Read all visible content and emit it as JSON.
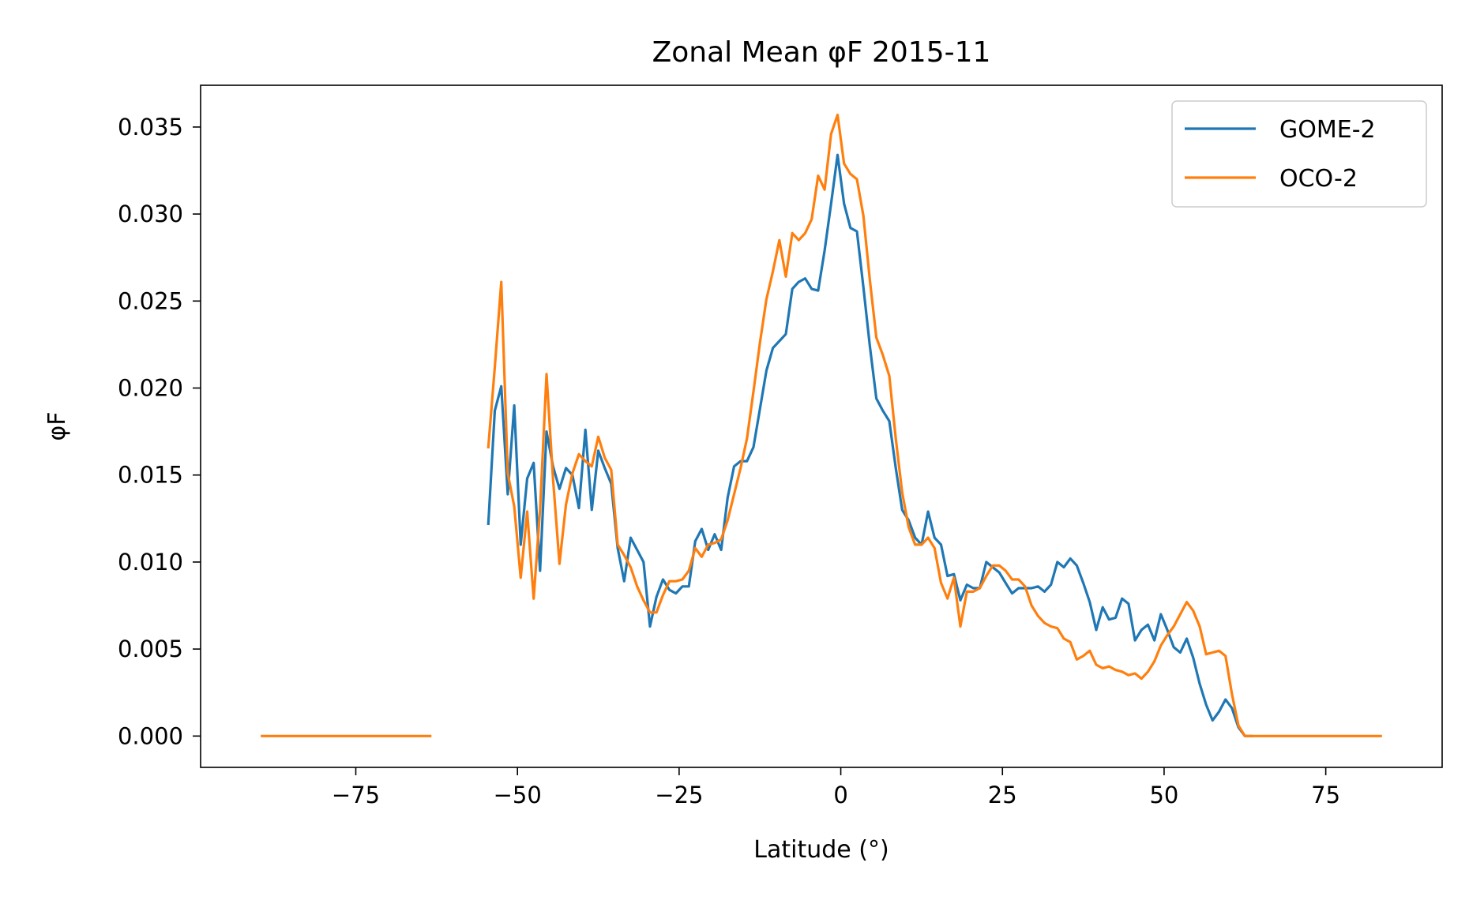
{
  "chart_data": {
    "type": "line",
    "title": "Zonal Mean φF  2015-11",
    "xlabel": "Latitude (°)",
    "ylabel": "φF",
    "xlim": [
      -99,
      93
    ],
    "ylim": [
      -0.0018,
      0.0374
    ],
    "xticks": [
      -75,
      -50,
      -25,
      0,
      25,
      50,
      75
    ],
    "xtick_labels": [
      "−75",
      "−50",
      "−25",
      "0",
      "25",
      "50",
      "75"
    ],
    "yticks": [
      0.0,
      0.005,
      0.01,
      0.015,
      0.02,
      0.025,
      0.03,
      0.035
    ],
    "ytick_labels": [
      "0.000",
      "0.005",
      "0.010",
      "0.015",
      "0.020",
      "0.025",
      "0.030",
      "0.035"
    ],
    "grid": false,
    "legend_position": "top-right",
    "series": [
      {
        "name": "GOME-2",
        "color": "#1f77b4",
        "segments": [
          [
            [
              -54.5,
              0.0122
            ],
            [
              -53.5,
              0.0187
            ],
            [
              -52.5,
              0.0201
            ],
            [
              -51.5,
              0.0139
            ],
            [
              -50.5,
              0.019
            ],
            [
              -49.5,
              0.011
            ],
            [
              -48.5,
              0.0148
            ],
            [
              -47.5,
              0.0157
            ],
            [
              -46.5,
              0.0095
            ],
            [
              -45.5,
              0.0175
            ],
            [
              -44.5,
              0.0155
            ],
            [
              -43.5,
              0.0142
            ],
            [
              -42.5,
              0.0154
            ],
            [
              -41.5,
              0.015
            ],
            [
              -40.5,
              0.0131
            ],
            [
              -39.5,
              0.0176
            ],
            [
              -38.5,
              0.013
            ],
            [
              -37.5,
              0.0164
            ],
            [
              -36.5,
              0.0154
            ],
            [
              -35.5,
              0.0145
            ],
            [
              -34.5,
              0.0108
            ],
            [
              -33.5,
              0.0089
            ],
            [
              -32.5,
              0.0114
            ],
            [
              -31.5,
              0.0107
            ],
            [
              -30.5,
              0.01
            ],
            [
              -29.5,
              0.0063
            ],
            [
              -28.5,
              0.008
            ],
            [
              -27.5,
              0.009
            ],
            [
              -26.5,
              0.0084
            ],
            [
              -25.5,
              0.0082
            ],
            [
              -24.5,
              0.0086
            ],
            [
              -23.5,
              0.0086
            ],
            [
              -22.5,
              0.0112
            ],
            [
              -21.5,
              0.0119
            ],
            [
              -20.5,
              0.0107
            ],
            [
              -19.5,
              0.0116
            ],
            [
              -18.5,
              0.0107
            ],
            [
              -17.5,
              0.0137
            ],
            [
              -16.5,
              0.0155
            ],
            [
              -15.5,
              0.0158
            ],
            [
              -14.5,
              0.0158
            ],
            [
              -13.5,
              0.0166
            ],
            [
              -12.5,
              0.0188
            ],
            [
              -11.5,
              0.021
            ],
            [
              -10.5,
              0.0223
            ],
            [
              -9.5,
              0.0227
            ],
            [
              -8.5,
              0.0231
            ],
            [
              -7.5,
              0.0257
            ],
            [
              -6.5,
              0.0261
            ],
            [
              -5.5,
              0.0263
            ],
            [
              -4.5,
              0.0257
            ],
            [
              -3.5,
              0.0256
            ],
            [
              -2.5,
              0.0279
            ],
            [
              -1.5,
              0.0306
            ],
            [
              -0.5,
              0.0334
            ],
            [
              0.5,
              0.0306
            ],
            [
              1.5,
              0.0292
            ],
            [
              2.5,
              0.029
            ],
            [
              3.5,
              0.0258
            ],
            [
              4.5,
              0.0224
            ],
            [
              5.5,
              0.0194
            ],
            [
              6.5,
              0.0187
            ],
            [
              7.5,
              0.0181
            ],
            [
              8.5,
              0.0154
            ],
            [
              9.5,
              0.013
            ],
            [
              10.5,
              0.0124
            ],
            [
              11.5,
              0.0114
            ],
            [
              12.5,
              0.011
            ],
            [
              13.5,
              0.0129
            ],
            [
              14.5,
              0.0114
            ],
            [
              15.5,
              0.011
            ],
            [
              16.5,
              0.0092
            ],
            [
              17.5,
              0.0093
            ],
            [
              18.5,
              0.0078
            ],
            [
              19.5,
              0.0087
            ],
            [
              20.5,
              0.0085
            ],
            [
              21.5,
              0.0085
            ],
            [
              22.5,
              0.01
            ],
            [
              23.5,
              0.0097
            ],
            [
              24.5,
              0.0094
            ],
            [
              25.5,
              0.0088
            ],
            [
              26.5,
              0.0082
            ],
            [
              27.5,
              0.0085
            ],
            [
              28.5,
              0.0085
            ],
            [
              29.5,
              0.0085
            ],
            [
              30.5,
              0.0086
            ],
            [
              31.5,
              0.0083
            ],
            [
              32.5,
              0.0087
            ],
            [
              33.5,
              0.01
            ],
            [
              34.5,
              0.0097
            ],
            [
              35.5,
              0.0102
            ],
            [
              36.5,
              0.0098
            ],
            [
              37.5,
              0.0088
            ],
            [
              38.5,
              0.0077
            ],
            [
              39.5,
              0.0061
            ],
            [
              40.5,
              0.0074
            ],
            [
              41.5,
              0.0067
            ],
            [
              42.5,
              0.0068
            ],
            [
              43.5,
              0.0079
            ],
            [
              44.5,
              0.0076
            ],
            [
              45.5,
              0.0055
            ],
            [
              46.5,
              0.0061
            ],
            [
              47.5,
              0.0064
            ],
            [
              48.5,
              0.0055
            ],
            [
              49.5,
              0.007
            ],
            [
              50.5,
              0.0061
            ],
            [
              51.5,
              0.0051
            ],
            [
              52.5,
              0.0048
            ],
            [
              53.5,
              0.0056
            ],
            [
              54.5,
              0.0045
            ],
            [
              55.5,
              0.003
            ],
            [
              56.5,
              0.0018
            ],
            [
              57.5,
              0.0009
            ],
            [
              58.5,
              0.0014
            ],
            [
              59.5,
              0.0021
            ],
            [
              60.5,
              0.0016
            ],
            [
              61.5,
              0.0005
            ],
            [
              62.5,
              0.0
            ],
            [
              63.5,
              0.0
            ]
          ]
        ]
      },
      {
        "name": "OCO-2",
        "color": "#ff7f0e",
        "segments": [
          [
            [
              -89.5,
              0.0
            ],
            [
              -63.5,
              0.0
            ]
          ],
          [
            [
              -54.5,
              0.0166
            ],
            [
              -53.5,
              0.0212
            ],
            [
              -52.5,
              0.0261
            ],
            [
              -51.5,
              0.0151
            ],
            [
              -50.5,
              0.0132
            ],
            [
              -49.5,
              0.0091
            ],
            [
              -48.5,
              0.0129
            ],
            [
              -47.5,
              0.0079
            ],
            [
              -46.5,
              0.013
            ],
            [
              -45.5,
              0.0208
            ],
            [
              -44.5,
              0.0148
            ],
            [
              -43.5,
              0.0099
            ],
            [
              -42.5,
              0.0133
            ],
            [
              -41.5,
              0.0151
            ],
            [
              -40.5,
              0.0162
            ],
            [
              -39.5,
              0.0158
            ],
            [
              -38.5,
              0.0155
            ],
            [
              -37.5,
              0.0172
            ],
            [
              -36.5,
              0.016
            ],
            [
              -35.5,
              0.0153
            ],
            [
              -34.5,
              0.011
            ],
            [
              -33.5,
              0.0104
            ],
            [
              -32.5,
              0.0097
            ],
            [
              -31.5,
              0.0086
            ],
            [
              -30.5,
              0.0078
            ],
            [
              -29.5,
              0.0071
            ],
            [
              -28.5,
              0.0071
            ],
            [
              -27.5,
              0.0081
            ],
            [
              -26.5,
              0.0089
            ],
            [
              -25.5,
              0.0089
            ],
            [
              -24.5,
              0.009
            ],
            [
              -23.5,
              0.0095
            ],
            [
              -22.5,
              0.0108
            ],
            [
              -21.5,
              0.0103
            ],
            [
              -20.5,
              0.011
            ],
            [
              -19.5,
              0.0111
            ],
            [
              -18.5,
              0.0113
            ],
            [
              -17.5,
              0.0124
            ],
            [
              -16.5,
              0.0139
            ],
            [
              -15.5,
              0.0154
            ],
            [
              -14.5,
              0.0171
            ],
            [
              -13.5,
              0.0198
            ],
            [
              -12.5,
              0.0226
            ],
            [
              -11.5,
              0.0251
            ],
            [
              -10.5,
              0.0267
            ],
            [
              -9.5,
              0.0285
            ],
            [
              -8.5,
              0.0264
            ],
            [
              -7.5,
              0.0289
            ],
            [
              -6.5,
              0.0285
            ],
            [
              -5.5,
              0.0289
            ],
            [
              -4.5,
              0.0297
            ],
            [
              -3.5,
              0.0322
            ],
            [
              -2.5,
              0.0314
            ],
            [
              -1.5,
              0.0346
            ],
            [
              -0.5,
              0.0357
            ],
            [
              0.5,
              0.0329
            ],
            [
              1.5,
              0.0323
            ],
            [
              2.5,
              0.032
            ],
            [
              3.5,
              0.0299
            ],
            [
              4.5,
              0.0262
            ],
            [
              5.5,
              0.0229
            ],
            [
              6.5,
              0.0219
            ],
            [
              7.5,
              0.0207
            ],
            [
              8.5,
              0.0171
            ],
            [
              9.5,
              0.014
            ],
            [
              10.5,
              0.012
            ],
            [
              11.5,
              0.011
            ],
            [
              12.5,
              0.011
            ],
            [
              13.5,
              0.0114
            ],
            [
              14.5,
              0.0108
            ],
            [
              15.5,
              0.0088
            ],
            [
              16.5,
              0.0079
            ],
            [
              17.5,
              0.0091
            ],
            [
              18.5,
              0.0063
            ],
            [
              19.5,
              0.0083
            ],
            [
              20.5,
              0.0083
            ],
            [
              21.5,
              0.0085
            ],
            [
              22.5,
              0.0092
            ],
            [
              23.5,
              0.0098
            ],
            [
              24.5,
              0.0098
            ],
            [
              25.5,
              0.0095
            ],
            [
              26.5,
              0.009
            ],
            [
              27.5,
              0.009
            ],
            [
              28.5,
              0.0086
            ],
            [
              29.5,
              0.0075
            ],
            [
              30.5,
              0.0069
            ],
            [
              31.5,
              0.0065
            ],
            [
              32.5,
              0.0063
            ],
            [
              33.5,
              0.0062
            ],
            [
              34.5,
              0.0056
            ],
            [
              35.5,
              0.0054
            ],
            [
              36.5,
              0.0044
            ],
            [
              37.5,
              0.0046
            ],
            [
              38.5,
              0.0049
            ],
            [
              39.5,
              0.0041
            ],
            [
              40.5,
              0.0039
            ],
            [
              41.5,
              0.004
            ],
            [
              42.5,
              0.0038
            ],
            [
              43.5,
              0.0037
            ],
            [
              44.5,
              0.0035
            ],
            [
              45.5,
              0.0036
            ],
            [
              46.5,
              0.0033
            ],
            [
              47.5,
              0.0037
            ],
            [
              48.5,
              0.0043
            ],
            [
              49.5,
              0.0052
            ],
            [
              50.5,
              0.0058
            ],
            [
              51.5,
              0.0063
            ],
            [
              52.5,
              0.007
            ],
            [
              53.5,
              0.0077
            ],
            [
              54.5,
              0.0072
            ],
            [
              55.5,
              0.0063
            ],
            [
              56.5,
              0.0047
            ],
            [
              57.5,
              0.0048
            ],
            [
              58.5,
              0.0049
            ],
            [
              59.5,
              0.0046
            ],
            [
              60.5,
              0.0024
            ],
            [
              61.5,
              0.0006
            ],
            [
              62.5,
              0.0
            ],
            [
              83.5,
              0.0
            ]
          ]
        ]
      }
    ]
  }
}
